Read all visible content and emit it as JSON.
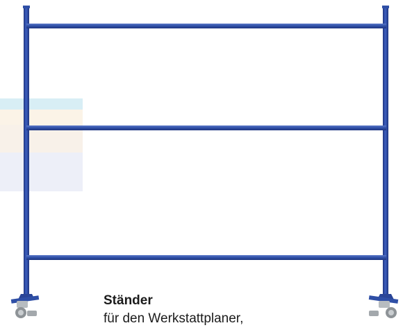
{
  "product": {
    "title": "Ständer",
    "subtitle": "für den Werkstattplaner,"
  },
  "colors": {
    "frame_blue": "#2f4fa6",
    "frame_dark": "#1f3580",
    "frame_light": "#5a78c8",
    "caster_grey": "#8e9397"
  },
  "icons": {
    "caster_left": "caster-wheel-icon",
    "caster_right": "caster-wheel-icon"
  }
}
